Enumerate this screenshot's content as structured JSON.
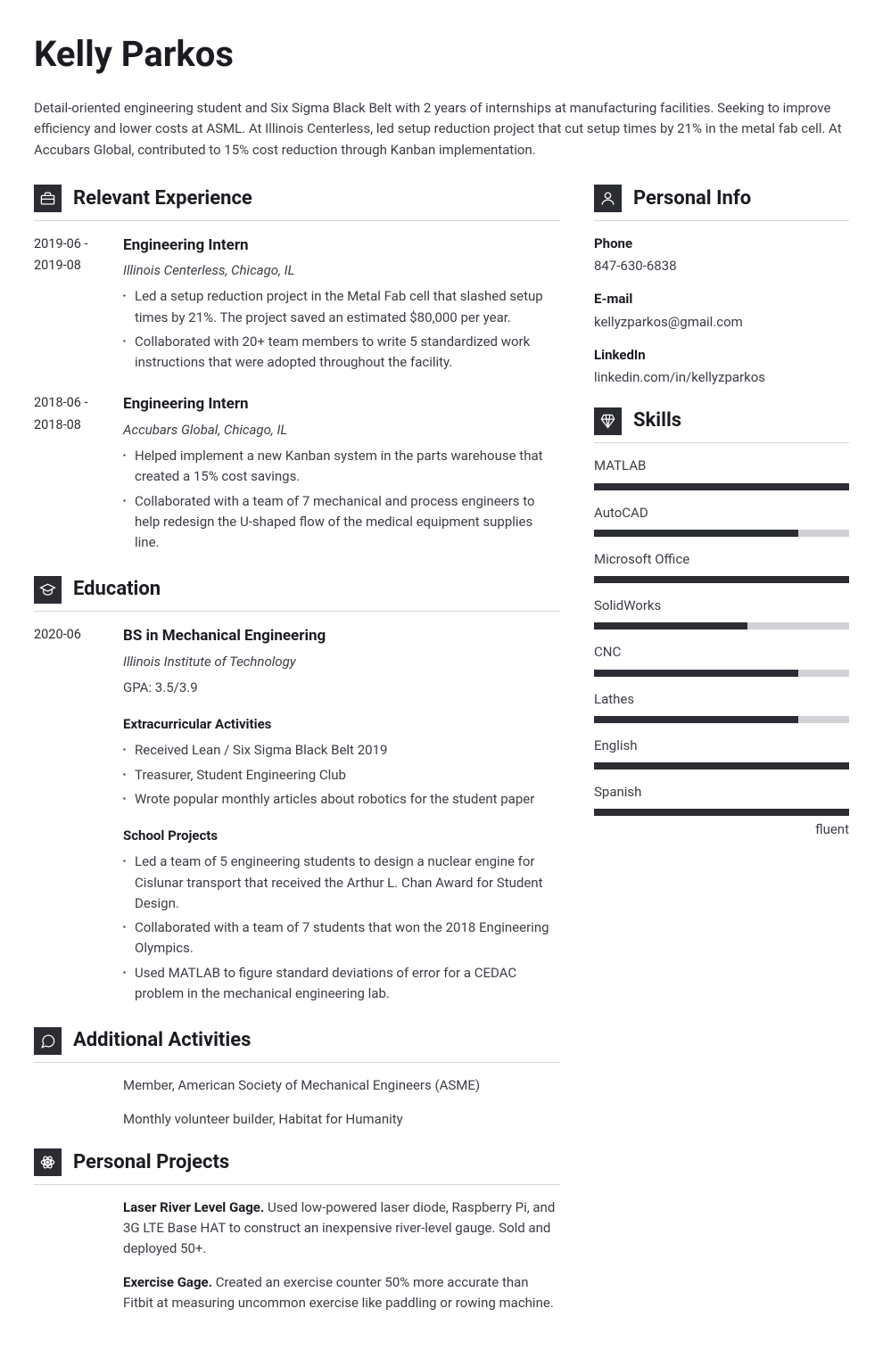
{
  "name": "Kelly Parkos",
  "summary": "Detail-oriented engineering student and Six Sigma Black Belt with 2 years of internships at manufacturing facilities. Seeking to improve efficiency and lower costs at ASML. At Illinois Centerless, led setup reduction project that cut setup times by 21% in the metal fab cell. At Accubars Global, contributed to 15% cost reduction through Kanban implementation.",
  "sections": {
    "experience": {
      "title": "Relevant Experience",
      "items": [
        {
          "dates": "2019-06 - 2019-08",
          "title": "Engineering Intern",
          "subtitle": "Illinois Centerless, Chicago, IL",
          "bullets": [
            "Led a setup reduction project in the Metal Fab cell that slashed setup times by 21%. The project saved an estimated $80,000 per year.",
            "Collaborated with 20+ team members to write 5 standardized work instructions that were adopted throughout the facility."
          ]
        },
        {
          "dates": "2018-06 - 2018-08",
          "title": "Engineering Intern",
          "subtitle": "Accubars Global, Chicago, IL",
          "bullets": [
            "Helped implement a new Kanban system in the parts warehouse that created a 15% cost savings.",
            "Collaborated with a team of 7 mechanical and process engineers to help redesign the U-shaped flow of the medical equipment supplies line."
          ]
        }
      ]
    },
    "education": {
      "title": "Education",
      "items": [
        {
          "dates": "2020-06",
          "title": "BS in Mechanical Engineering",
          "subtitle": "Illinois Institute of Technology",
          "gpa": "GPA: 3.5/3.9",
          "subsections": [
            {
              "title": "Extracurricular Activities",
              "bullets": [
                "Received Lean / Six Sigma Black Belt 2019",
                "Treasurer, Student Engineering Club",
                "Wrote popular monthly articles about robotics for the student paper"
              ]
            },
            {
              "title": "School Projects",
              "bullets": [
                "Led a team of 5 engineering students to design a nuclear engine for Cislunar transport that received the Arthur L. Chan Award for Student Design.",
                "Collaborated with a team of 7 students that won the 2018 Engineering Olympics.",
                "Used MATLAB to figure standard deviations of error for a CEDAC problem in the mechanical engineering lab."
              ]
            }
          ]
        }
      ]
    },
    "activities": {
      "title": "Additional Activities",
      "lines": [
        "Member, American Society of Mechanical Engineers (ASME)",
        "Monthly volunteer builder, Habitat for Humanity"
      ]
    },
    "projects": {
      "title": "Personal Projects",
      "items": [
        {
          "name": "Laser River Level Gage.",
          "desc": " Used low-powered laser diode, Raspberry Pi, and 3G LTE Base HAT to construct an inexpensive river-level gauge. Sold and deployed 50+."
        },
        {
          "name": "Exercise Gage.",
          "desc": " Created an exercise counter 50% more accurate than Fitbit at measuring uncommon exercise like paddling or rowing machine."
        }
      ]
    },
    "personal": {
      "title": "Personal Info",
      "items": [
        {
          "label": "Phone",
          "value": "847-630-6838"
        },
        {
          "label": "E-mail",
          "value": "kellyzparkos@gmail.com"
        },
        {
          "label": "LinkedIn",
          "value": "linkedin.com/in/kellyzparkos"
        }
      ]
    },
    "skills": {
      "title": "Skills",
      "items": [
        {
          "name": "MATLAB",
          "level": 100
        },
        {
          "name": "AutoCAD",
          "level": 80
        },
        {
          "name": "Microsoft Office",
          "level": 100
        },
        {
          "name": "SolidWorks",
          "level": 60
        },
        {
          "name": "CNC",
          "level": 80
        },
        {
          "name": "Lathes",
          "level": 80
        },
        {
          "name": "English",
          "level": 100
        },
        {
          "name": "Spanish",
          "level": 100,
          "note": "fluent"
        }
      ]
    }
  },
  "colors": {
    "icon_bg": "#2b2d33",
    "bar_fill": "#2b2d33",
    "bar_bg": "#d1d2d6",
    "divider": "#d6d7da",
    "text": "#3a3d44",
    "heading": "#1a1c21"
  }
}
